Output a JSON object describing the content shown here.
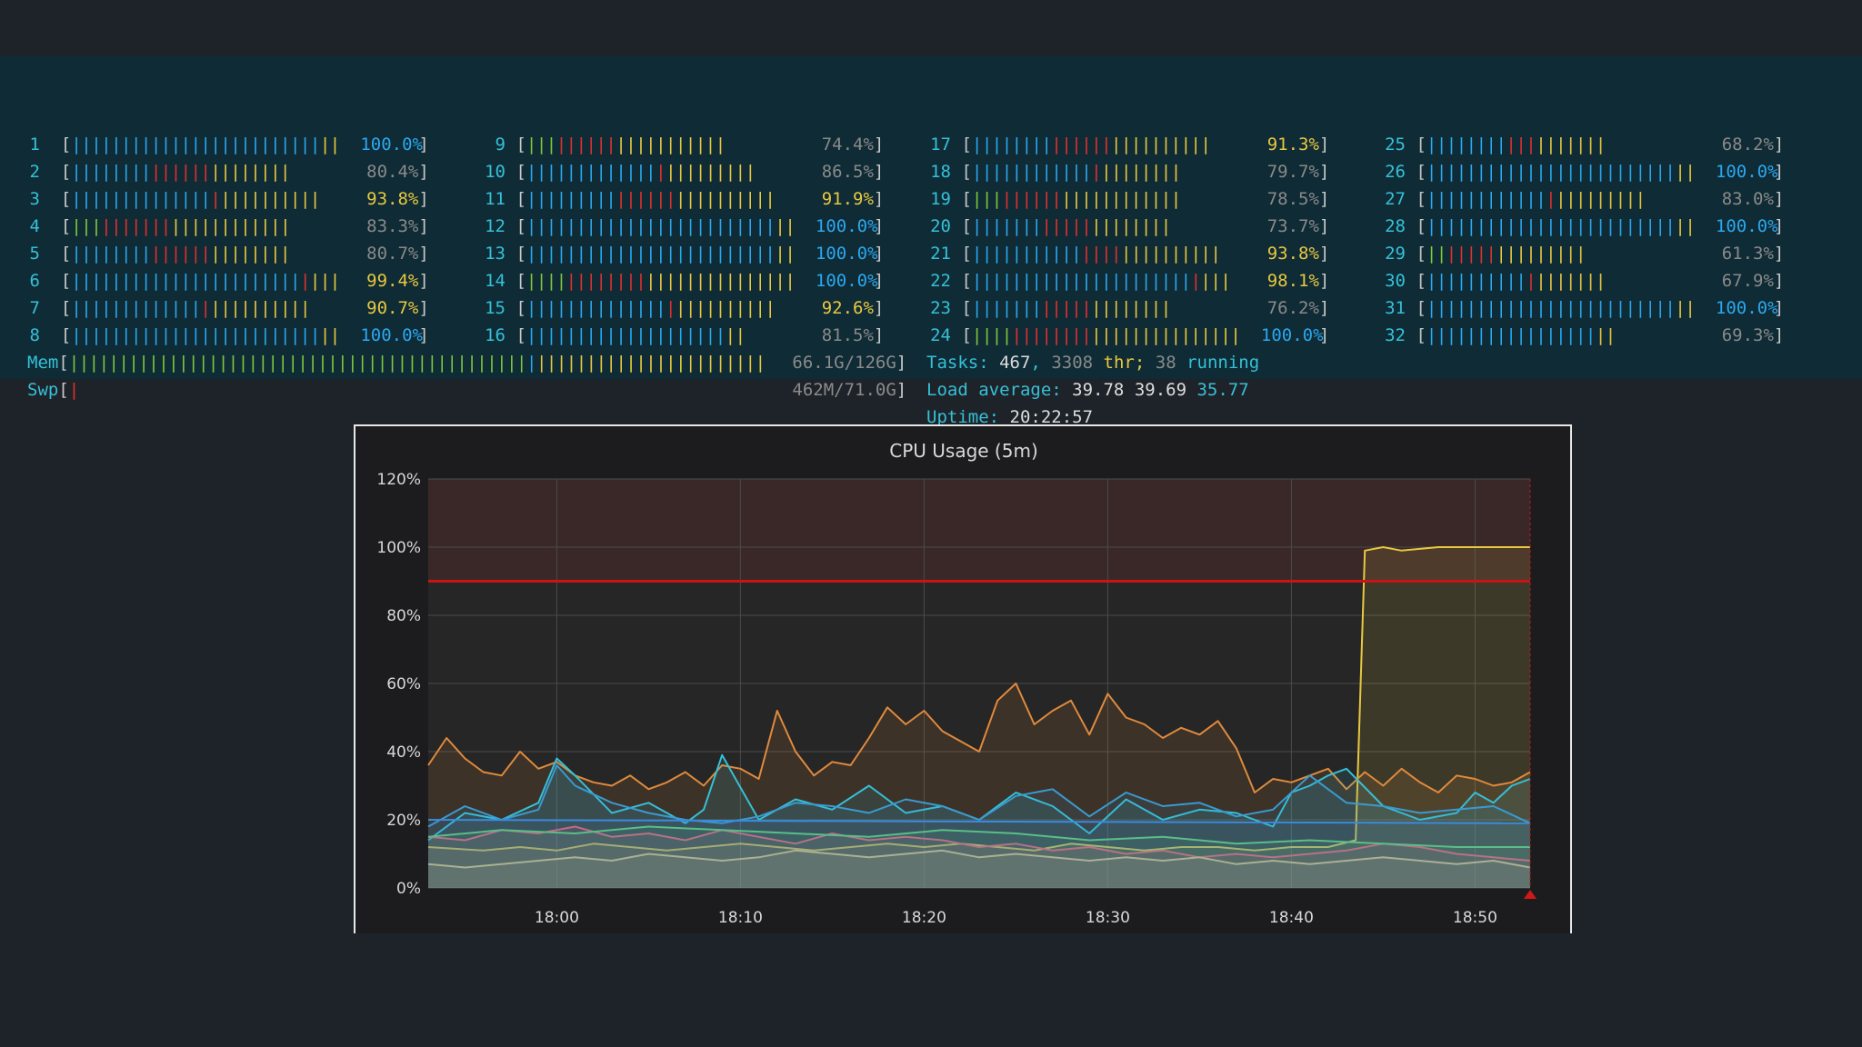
{
  "cpu_meters": [
    {
      "id": "1",
      "value": "100.0%"
    },
    {
      "id": "2",
      "value": "80.4%"
    },
    {
      "id": "3",
      "value": "93.8%"
    },
    {
      "id": "4",
      "value": "83.3%"
    },
    {
      "id": "5",
      "value": "80.7%"
    },
    {
      "id": "6",
      "value": "99.4%"
    },
    {
      "id": "7",
      "value": "90.7%"
    },
    {
      "id": "8",
      "value": "100.0%"
    },
    {
      "id": "9",
      "value": "74.4%"
    },
    {
      "id": "10",
      "value": "86.5%"
    },
    {
      "id": "11",
      "value": "91.9%"
    },
    {
      "id": "12",
      "value": "100.0%"
    },
    {
      "id": "13",
      "value": "100.0%"
    },
    {
      "id": "14",
      "value": "100.0%"
    },
    {
      "id": "15",
      "value": "92.6%"
    },
    {
      "id": "16",
      "value": "81.5%"
    },
    {
      "id": "17",
      "value": "91.3%"
    },
    {
      "id": "18",
      "value": "79.7%"
    },
    {
      "id": "19",
      "value": "78.5%"
    },
    {
      "id": "20",
      "value": "73.7%"
    },
    {
      "id": "21",
      "value": "93.8%"
    },
    {
      "id": "22",
      "value": "98.1%"
    },
    {
      "id": "23",
      "value": "76.2%"
    },
    {
      "id": "24",
      "value": "100.0%"
    },
    {
      "id": "25",
      "value": "68.2%"
    },
    {
      "id": "26",
      "value": "100.0%"
    },
    {
      "id": "27",
      "value": "83.0%"
    },
    {
      "id": "28",
      "value": "100.0%"
    },
    {
      "id": "29",
      "value": "61.3%"
    },
    {
      "id": "30",
      "value": "67.9%"
    },
    {
      "id": "31",
      "value": "100.0%"
    },
    {
      "id": "32",
      "value": "69.3%"
    }
  ],
  "mem": {
    "label": "Mem",
    "value": "66.1G/126G"
  },
  "swp": {
    "label": "Swp",
    "value": "462M/71.0G"
  },
  "tasks": {
    "label": "Tasks:",
    "count": "467",
    "thr_count": "3308",
    "thr_label": "thr;",
    "running_count": "38",
    "running_label": "running"
  },
  "load": {
    "label": "Load average:",
    "v1": "39.78",
    "v5": "39.69",
    "v15": "35.77"
  },
  "uptime": {
    "label": "Uptime:",
    "value": "20:22:57"
  },
  "colors": {
    "blue": "#2aa8f0",
    "green": "#7dc83c",
    "red": "#e03030",
    "yellow": "#e8c840",
    "cyan": "#35c0d8",
    "threshold": "#c81414"
  },
  "chart_data": {
    "type": "line",
    "title": "CPU Usage (5m)",
    "ylim": [
      0,
      120
    ],
    "y_ticks": [
      "0%",
      "20%",
      "40%",
      "60%",
      "80%",
      "100%",
      "120%"
    ],
    "y_tick_values": [
      0,
      20,
      40,
      60,
      80,
      100,
      120
    ],
    "x_ticks": [
      "18:00",
      "18:10",
      "18:20",
      "18:30",
      "18:40",
      "18:50"
    ],
    "x_tick_values": [
      0,
      10,
      20,
      30,
      40,
      50
    ],
    "xlim": [
      -7,
      53
    ],
    "threshold": 90,
    "series": [
      {
        "color": "#e8c840",
        "x": [
          -7,
          -4,
          -2,
          0,
          2,
          4,
          6,
          8,
          10,
          12,
          14,
          16,
          18,
          20,
          22,
          24,
          26,
          28,
          30,
          32,
          34,
          36,
          38,
          40,
          42,
          43.5,
          44,
          45,
          46,
          48,
          50,
          52,
          53
        ],
        "y": [
          12,
          11,
          12,
          11,
          13,
          12,
          11,
          12,
          13,
          12,
          11,
          12,
          13,
          12,
          13,
          12,
          11,
          13,
          12,
          11,
          12,
          12,
          11,
          12,
          12,
          14,
          99,
          100,
          99,
          100,
          100,
          100,
          100
        ]
      },
      {
        "color": "#e08a3c",
        "x": [
          -7,
          -6,
          -5,
          -4,
          -3,
          -2,
          -1,
          0,
          1,
          2,
          3,
          4,
          5,
          6,
          7,
          8,
          9,
          10,
          11,
          12,
          13,
          14,
          15,
          16,
          17,
          18,
          19,
          20,
          21,
          22,
          23,
          24,
          25,
          26,
          27,
          28,
          29,
          30,
          31,
          32,
          33,
          34,
          35,
          36,
          37,
          38,
          39,
          40,
          41,
          42,
          43,
          44,
          45,
          46,
          47,
          48,
          49,
          50,
          51,
          52,
          53
        ],
        "y": [
          36,
          44,
          38,
          34,
          33,
          40,
          35,
          37,
          33,
          31,
          30,
          33,
          29,
          31,
          34,
          30,
          36,
          35,
          32,
          52,
          40,
          33,
          37,
          36,
          44,
          53,
          48,
          52,
          46,
          43,
          40,
          55,
          60,
          48,
          52,
          55,
          45,
          57,
          50,
          48,
          44,
          47,
          45,
          49,
          41,
          28,
          32,
          31,
          33,
          35,
          29,
          34,
          30,
          35,
          31,
          28,
          33,
          32,
          30,
          31,
          34
        ]
      },
      {
        "color": "#35c0d8",
        "x": [
          -7,
          -5,
          -3,
          -1,
          0,
          1,
          3,
          5,
          7,
          8,
          9,
          11,
          13,
          15,
          17,
          19,
          21,
          23,
          25,
          27,
          29,
          31,
          33,
          35,
          37,
          39,
          40,
          41,
          42,
          43,
          45,
          47,
          49,
          50,
          51,
          52,
          53
        ],
        "y": [
          14,
          22,
          20,
          25,
          38,
          33,
          22,
          25,
          19,
          23,
          39,
          20,
          26,
          23,
          30,
          22,
          24,
          20,
          28,
          24,
          16,
          26,
          20,
          23,
          22,
          18,
          28,
          30,
          33,
          35,
          24,
          20,
          22,
          28,
          25,
          30,
          32
        ]
      },
      {
        "color": "#3a9ad0",
        "x": [
          -7,
          -5,
          -3,
          -1,
          0,
          1,
          3,
          5,
          7,
          9,
          11,
          13,
          15,
          17,
          19,
          21,
          23,
          25,
          27,
          29,
          31,
          33,
          35,
          37,
          39,
          41,
          43,
          45,
          47,
          49,
          51,
          53
        ],
        "y": [
          18,
          24,
          20,
          23,
          36,
          30,
          25,
          22,
          20,
          19,
          21,
          25,
          24,
          22,
          26,
          24,
          20,
          27,
          29,
          21,
          28,
          24,
          25,
          21,
          23,
          33,
          25,
          24,
          22,
          23,
          24,
          19
        ]
      },
      {
        "color": "#d86478",
        "x": [
          -7,
          -5,
          -3,
          -1,
          1,
          3,
          5,
          7,
          9,
          11,
          13,
          15,
          17,
          19,
          21,
          23,
          25,
          27,
          29,
          31,
          33,
          35,
          37,
          39,
          41,
          43,
          45,
          47,
          49,
          51,
          53
        ],
        "y": [
          15,
          14,
          17,
          16,
          18,
          15,
          16,
          14,
          17,
          15,
          13,
          16,
          14,
          15,
          14,
          12,
          13,
          11,
          12,
          10,
          11,
          9,
          10,
          9,
          10,
          11,
          13,
          12,
          10,
          9,
          8
        ]
      },
      {
        "color": "#c8b48c",
        "x": [
          -7,
          -5,
          -3,
          -1,
          1,
          3,
          5,
          7,
          9,
          11,
          13,
          15,
          17,
          19,
          21,
          23,
          25,
          27,
          29,
          31,
          33,
          35,
          37,
          39,
          41,
          43,
          45,
          47,
          49,
          51,
          53
        ],
        "y": [
          7,
          6,
          7,
          8,
          9,
          8,
          10,
          9,
          8,
          9,
          11,
          10,
          9,
          10,
          11,
          9,
          10,
          9,
          8,
          9,
          8,
          9,
          7,
          8,
          7,
          8,
          9,
          8,
          7,
          8,
          6
        ]
      },
      {
        "color": "#3a8ae0",
        "x": [
          -7,
          53
        ],
        "y": [
          20,
          19
        ]
      },
      {
        "color": "#5abe88",
        "x": [
          -7,
          -3,
          1,
          5,
          9,
          13,
          17,
          21,
          25,
          29,
          33,
          37,
          41,
          45,
          49,
          53
        ],
        "y": [
          15,
          17,
          16,
          18,
          17,
          16,
          15,
          17,
          16,
          14,
          15,
          13,
          14,
          13,
          12,
          12
        ]
      }
    ]
  }
}
